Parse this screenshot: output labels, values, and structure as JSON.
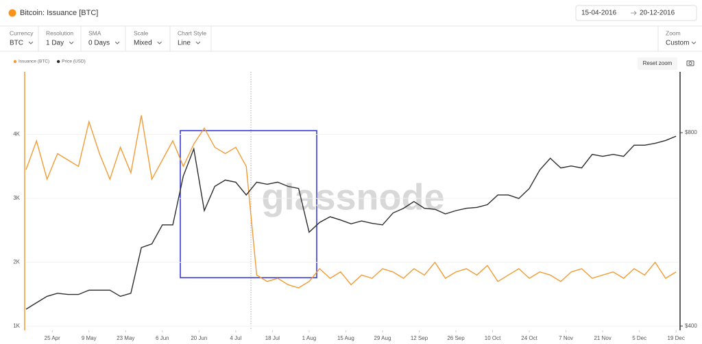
{
  "header": {
    "title": "Bitcoin: Issuance [BTC]",
    "date_from": "15-04-2016",
    "date_to": "20-12-2016"
  },
  "toolbar": [
    {
      "label": "Currency",
      "value": "BTC"
    },
    {
      "label": "Resolution",
      "value": "1 Day"
    },
    {
      "label": "SMA",
      "value": "0 Days"
    },
    {
      "label": "Scale",
      "value": "Mixed"
    },
    {
      "label": "Chart Style",
      "value": "Line"
    }
  ],
  "zoom": {
    "label": "Zoom",
    "value": "Custom"
  },
  "reset_zoom": "Reset zoom",
  "chart_data": {
    "type": "line",
    "watermark": "glassnode",
    "grid": true,
    "y2scale": "log",
    "xlim": [
      "2016-04-15",
      "2016-12-20"
    ],
    "xticks": [
      {
        "value": "2016-04-25",
        "label": "25 Apr"
      },
      {
        "value": "2016-05-09",
        "label": "9 May"
      },
      {
        "value": "2016-05-23",
        "label": "23 May"
      },
      {
        "value": "2016-06-06",
        "label": "6 Jun"
      },
      {
        "value": "2016-06-20",
        "label": "20 Jun"
      },
      {
        "value": "2016-07-04",
        "label": "4 Jul"
      },
      {
        "value": "2016-07-18",
        "label": "18 Jul"
      },
      {
        "value": "2016-08-01",
        "label": "1 Aug"
      },
      {
        "value": "2016-08-15",
        "label": "15 Aug"
      },
      {
        "value": "2016-08-29",
        "label": "29 Aug"
      },
      {
        "value": "2016-09-12",
        "label": "12 Sep"
      },
      {
        "value": "2016-09-26",
        "label": "26 Sep"
      },
      {
        "value": "2016-10-10",
        "label": "10 Oct"
      },
      {
        "value": "2016-10-24",
        "label": "24 Oct"
      },
      {
        "value": "2016-11-07",
        "label": "7 Nov"
      },
      {
        "value": "2016-11-21",
        "label": "21 Nov"
      },
      {
        "value": "2016-12-05",
        "label": "5 Dec"
      },
      {
        "value": "2016-12-19",
        "label": "19 Dec"
      }
    ],
    "ylim": [
      936,
      4980
    ],
    "yticks": [
      {
        "value": 1000,
        "label": "1K"
      },
      {
        "value": 2000,
        "label": "2K"
      },
      {
        "value": 3000,
        "label": "3K"
      },
      {
        "value": 4000,
        "label": "4K"
      }
    ],
    "y2lim": [
      394,
      995
    ],
    "y2ticks": [
      {
        "value": 400,
        "label": "$400"
      },
      {
        "value": 800,
        "label": "$800"
      }
    ],
    "x": [
      "2016-04-15",
      "2016-04-19",
      "2016-04-23",
      "2016-04-27",
      "2016-05-01",
      "2016-05-05",
      "2016-05-09",
      "2016-05-13",
      "2016-05-17",
      "2016-05-21",
      "2016-05-25",
      "2016-05-29",
      "2016-06-02",
      "2016-06-06",
      "2016-06-10",
      "2016-06-14",
      "2016-06-18",
      "2016-06-22",
      "2016-06-26",
      "2016-06-30",
      "2016-07-04",
      "2016-07-08",
      "2016-07-12",
      "2016-07-16",
      "2016-07-20",
      "2016-07-24",
      "2016-07-28",
      "2016-08-01",
      "2016-08-05",
      "2016-08-09",
      "2016-08-13",
      "2016-08-17",
      "2016-08-21",
      "2016-08-25",
      "2016-08-29",
      "2016-09-02",
      "2016-09-06",
      "2016-09-10",
      "2016-09-14",
      "2016-09-18",
      "2016-09-22",
      "2016-09-26",
      "2016-09-30",
      "2016-10-04",
      "2016-10-08",
      "2016-10-12",
      "2016-10-16",
      "2016-10-20",
      "2016-10-24",
      "2016-10-28",
      "2016-11-01",
      "2016-11-05",
      "2016-11-09",
      "2016-11-13",
      "2016-11-17",
      "2016-11-21",
      "2016-11-25",
      "2016-11-29",
      "2016-12-03",
      "2016-12-07",
      "2016-12-11",
      "2016-12-15",
      "2016-12-19"
    ],
    "series": [
      {
        "name": "Issuance (BTC)",
        "color": "#f39a33",
        "axis": "y",
        "values": [
          3450,
          3900,
          3300,
          3700,
          3600,
          3500,
          4200,
          3700,
          3300,
          3800,
          3400,
          4300,
          3300,
          3600,
          3900,
          3500,
          3850,
          4100,
          3800,
          3700,
          3800,
          3500,
          1800,
          1700,
          1750,
          1650,
          1600,
          1700,
          1900,
          1750,
          1850,
          1650,
          1800,
          1750,
          1900,
          1850,
          1750,
          1900,
          1800,
          2000,
          1750,
          1850,
          1900,
          1800,
          1950,
          1700,
          1800,
          1900,
          1750,
          1850,
          1800,
          1700,
          1850,
          1900,
          1750,
          1800,
          1850,
          1750,
          1900,
          1800,
          2000,
          1750,
          1850
        ]
      },
      {
        "name": "Price (USD)",
        "color": "#2b2b2b",
        "axis": "y2",
        "values": [
          425,
          435,
          445,
          450,
          448,
          448,
          455,
          455,
          455,
          445,
          450,
          530,
          537,
          575,
          575,
          685,
          755,
          605,
          660,
          675,
          670,
          640,
          670,
          665,
          670,
          660,
          655,
          560,
          580,
          592,
          585,
          577,
          583,
          578,
          575,
          600,
          610,
          625,
          610,
          608,
          598,
          605,
          610,
          612,
          618,
          640,
          640,
          632,
          655,
          700,
          730,
          705,
          710,
          705,
          740,
          735,
          740,
          735,
          765,
          765,
          770,
          778,
          790
        ]
      }
    ]
  }
}
